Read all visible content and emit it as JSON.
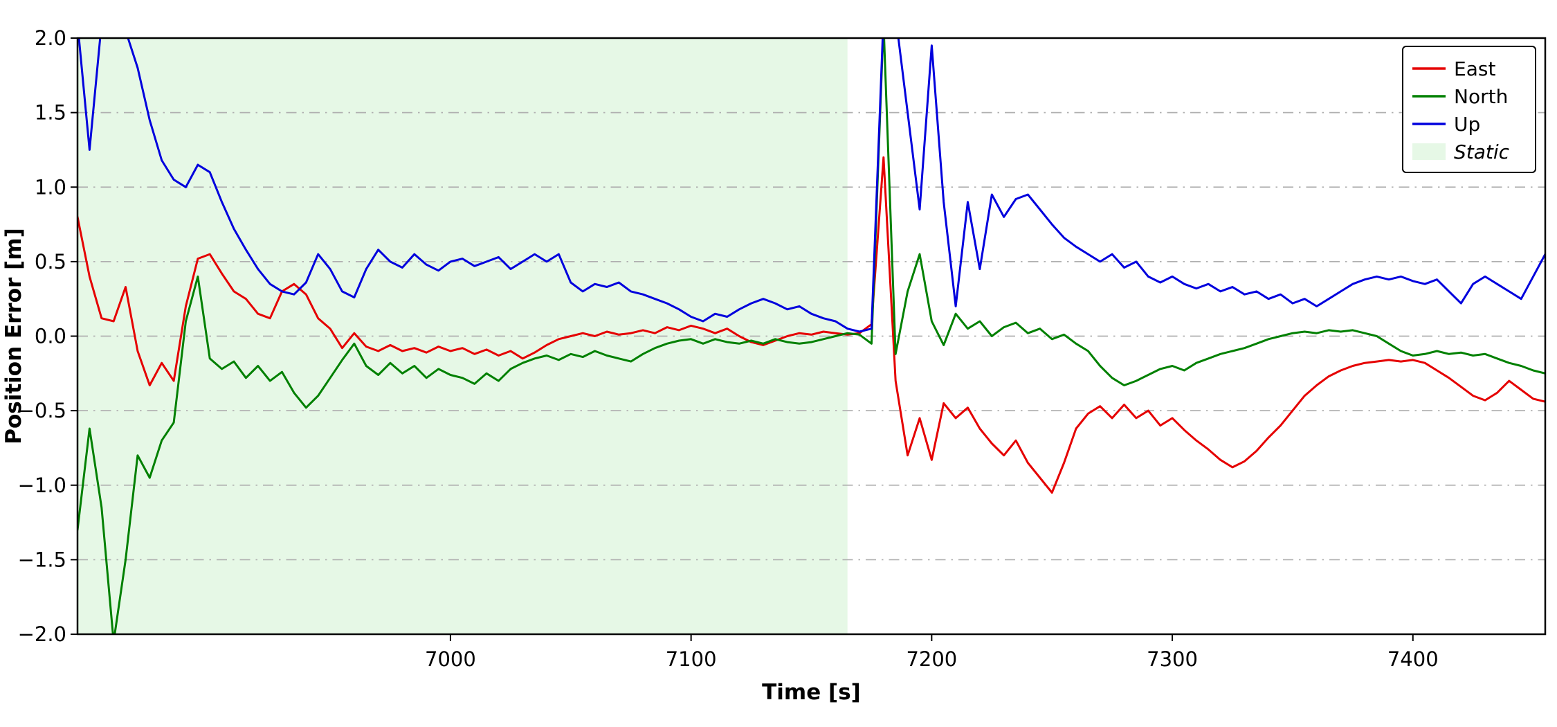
{
  "figure": {
    "background": "#ffffff",
    "spine_color": "#000000",
    "grid_color": "#b0b0b0"
  },
  "chart_data": {
    "type": "line",
    "title": "",
    "xlabel": "Time [s]",
    "ylabel": "Position Error [m]",
    "xlim": [
      6845,
      7455
    ],
    "ylim": [
      -2.0,
      2.0
    ],
    "x_ticks": [
      7000,
      7100,
      7200,
      7300,
      7400
    ],
    "y_ticks": [
      -2.0,
      -1.5,
      -1.0,
      -0.5,
      0.0,
      0.5,
      1.0,
      1.5,
      2.0
    ],
    "grid": "horizontal dash-dot",
    "legend": {
      "position": "upper right",
      "entries": [
        "East",
        "North",
        "Up",
        "Static"
      ]
    },
    "static_region": {
      "label": "Static",
      "x_start": 6845,
      "x_end": 7165,
      "color": "#e6f8e6"
    },
    "x": [
      6845,
      6850,
      6855,
      6860,
      6865,
      6870,
      6875,
      6880,
      6885,
      6890,
      6895,
      6900,
      6905,
      6910,
      6915,
      6920,
      6925,
      6930,
      6935,
      6940,
      6945,
      6950,
      6955,
      6960,
      6965,
      6970,
      6975,
      6980,
      6985,
      6990,
      6995,
      7000,
      7005,
      7010,
      7015,
      7020,
      7025,
      7030,
      7035,
      7040,
      7045,
      7050,
      7055,
      7060,
      7065,
      7070,
      7075,
      7080,
      7085,
      7090,
      7095,
      7100,
      7105,
      7110,
      7115,
      7120,
      7125,
      7130,
      7135,
      7140,
      7145,
      7150,
      7155,
      7160,
      7165,
      7170,
      7175,
      7180,
      7185,
      7190,
      7195,
      7200,
      7205,
      7210,
      7215,
      7220,
      7225,
      7230,
      7235,
      7240,
      7245,
      7250,
      7255,
      7260,
      7265,
      7270,
      7275,
      7280,
      7285,
      7290,
      7295,
      7300,
      7305,
      7310,
      7315,
      7320,
      7325,
      7330,
      7335,
      7340,
      7345,
      7350,
      7355,
      7360,
      7365,
      7370,
      7375,
      7380,
      7385,
      7390,
      7395,
      7400,
      7405,
      7410,
      7415,
      7420,
      7425,
      7430,
      7435,
      7440,
      7445,
      7450,
      7455
    ],
    "series": [
      {
        "name": "East",
        "color": "#e50000",
        "values": [
          0.8,
          0.4,
          0.12,
          0.1,
          0.33,
          -0.1,
          -0.33,
          -0.18,
          -0.3,
          0.2,
          0.52,
          0.55,
          0.42,
          0.3,
          0.25,
          0.15,
          0.12,
          0.3,
          0.35,
          0.28,
          0.12,
          0.05,
          -0.08,
          0.02,
          -0.07,
          -0.1,
          -0.06,
          -0.1,
          -0.08,
          -0.11,
          -0.07,
          -0.1,
          -0.08,
          -0.12,
          -0.09,
          -0.13,
          -0.1,
          -0.15,
          -0.11,
          -0.06,
          -0.02,
          0.0,
          0.02,
          0.0,
          0.03,
          0.01,
          0.02,
          0.04,
          0.02,
          0.06,
          0.04,
          0.07,
          0.05,
          0.02,
          0.05,
          0.0,
          -0.04,
          -0.06,
          -0.03,
          0.0,
          0.02,
          0.01,
          0.03,
          0.02,
          0.01,
          0.02,
          0.08,
          1.2,
          -0.3,
          -0.8,
          -0.55,
          -0.83,
          -0.45,
          -0.55,
          -0.48,
          -0.62,
          -0.72,
          -0.8,
          -0.7,
          -0.85,
          -0.95,
          -1.05,
          -0.85,
          -0.62,
          -0.52,
          -0.47,
          -0.55,
          -0.46,
          -0.55,
          -0.5,
          -0.6,
          -0.55,
          -0.63,
          -0.7,
          -0.76,
          -0.83,
          -0.88,
          -0.84,
          -0.77,
          -0.68,
          -0.6,
          -0.5,
          -0.4,
          -0.33,
          -0.27,
          -0.23,
          -0.2,
          -0.18,
          -0.17,
          -0.16,
          -0.17,
          -0.16,
          -0.18,
          -0.23,
          -0.28,
          -0.34,
          -0.4,
          -0.43,
          -0.38,
          -0.3,
          -0.36,
          -0.42,
          -0.44
        ]
      },
      {
        "name": "North",
        "color": "#008000",
        "values": [
          -1.3,
          -0.62,
          -1.15,
          -2.05,
          -1.5,
          -0.8,
          -0.95,
          -0.7,
          -0.58,
          0.1,
          0.4,
          -0.15,
          -0.22,
          -0.17,
          -0.28,
          -0.2,
          -0.3,
          -0.24,
          -0.38,
          -0.48,
          -0.4,
          -0.28,
          -0.16,
          -0.05,
          -0.2,
          -0.26,
          -0.18,
          -0.25,
          -0.2,
          -0.28,
          -0.22,
          -0.26,
          -0.28,
          -0.32,
          -0.25,
          -0.3,
          -0.22,
          -0.18,
          -0.15,
          -0.13,
          -0.16,
          -0.12,
          -0.14,
          -0.1,
          -0.13,
          -0.15,
          -0.17,
          -0.12,
          -0.08,
          -0.05,
          -0.03,
          -0.02,
          -0.05,
          -0.02,
          -0.04,
          -0.05,
          -0.03,
          -0.05,
          -0.02,
          -0.04,
          -0.05,
          -0.04,
          -0.02,
          0.0,
          0.02,
          0.01,
          -0.05,
          2.1,
          -0.12,
          0.3,
          0.55,
          0.1,
          -0.06,
          0.15,
          0.05,
          0.1,
          0.0,
          0.06,
          0.09,
          0.02,
          0.05,
          -0.02,
          0.01,
          -0.05,
          -0.1,
          -0.2,
          -0.28,
          -0.33,
          -0.3,
          -0.26,
          -0.22,
          -0.2,
          -0.23,
          -0.18,
          -0.15,
          -0.12,
          -0.1,
          -0.08,
          -0.05,
          -0.02,
          0.0,
          0.02,
          0.03,
          0.02,
          0.04,
          0.03,
          0.04,
          0.02,
          0.0,
          -0.05,
          -0.1,
          -0.13,
          -0.12,
          -0.1,
          -0.12,
          -0.11,
          -0.13,
          -0.12,
          -0.15,
          -0.18,
          -0.2,
          -0.23,
          -0.25
        ]
      },
      {
        "name": "Up",
        "color": "#0000dd",
        "values": [
          2.1,
          1.25,
          2.1,
          2.12,
          2.05,
          1.8,
          1.45,
          1.18,
          1.05,
          1.0,
          1.15,
          1.1,
          0.9,
          0.72,
          0.58,
          0.45,
          0.35,
          0.3,
          0.28,
          0.36,
          0.55,
          0.45,
          0.3,
          0.26,
          0.45,
          0.58,
          0.5,
          0.46,
          0.55,
          0.48,
          0.44,
          0.5,
          0.52,
          0.47,
          0.5,
          0.53,
          0.45,
          0.5,
          0.55,
          0.5,
          0.55,
          0.36,
          0.3,
          0.35,
          0.33,
          0.36,
          0.3,
          0.28,
          0.25,
          0.22,
          0.18,
          0.13,
          0.1,
          0.15,
          0.13,
          0.18,
          0.22,
          0.25,
          0.22,
          0.18,
          0.2,
          0.15,
          0.12,
          0.1,
          0.05,
          0.03,
          0.05,
          2.15,
          2.15,
          1.5,
          0.85,
          1.95,
          0.9,
          0.2,
          0.9,
          0.45,
          0.95,
          0.8,
          0.92,
          0.95,
          0.85,
          0.75,
          0.66,
          0.6,
          0.55,
          0.5,
          0.55,
          0.46,
          0.5,
          0.4,
          0.36,
          0.4,
          0.35,
          0.32,
          0.35,
          0.3,
          0.33,
          0.28,
          0.3,
          0.25,
          0.28,
          0.22,
          0.25,
          0.2,
          0.25,
          0.3,
          0.35,
          0.38,
          0.4,
          0.38,
          0.4,
          0.37,
          0.35,
          0.38,
          0.3,
          0.22,
          0.35,
          0.4,
          0.35,
          0.3,
          0.25,
          0.4,
          0.55
        ]
      }
    ]
  }
}
